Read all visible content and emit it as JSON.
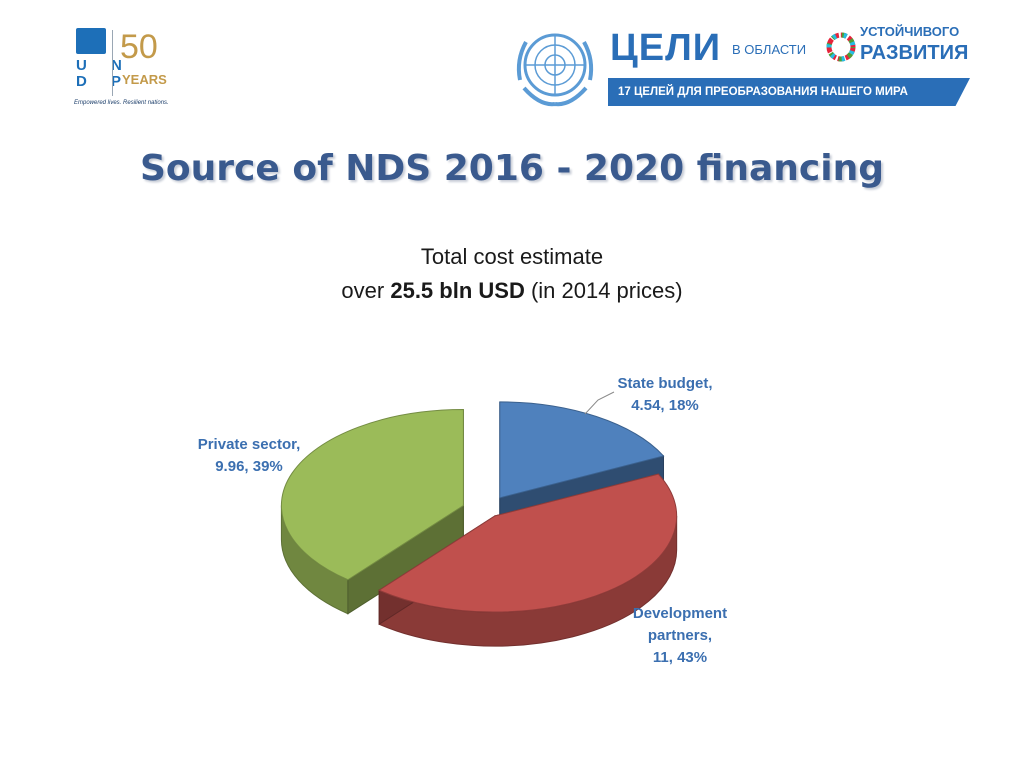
{
  "header": {
    "undp": {
      "letters": [
        "U N",
        "D P"
      ],
      "fifty": "50",
      "years": "YEARS",
      "tagline": "Empowered lives. Resilient nations."
    },
    "sdg": {
      "goals": "ЦЕЛИ",
      "in_area": "В ОБЛАСТИ",
      "sustainable": "УСТОЙЧИВОГО",
      "development": "РАЗВИТИЯ",
      "bar_text": "17 ЦЕЛЕЙ ДЛЯ ПРЕОБРАЗОВАНИЯ НАШЕГО МИРА"
    }
  },
  "slide": {
    "title": "Source of NDS 2016 - 2020 financing",
    "subtitle_line1": "Total cost estimate",
    "subtitle_prefix": "over ",
    "subtitle_bold": "25.5 bln USD",
    "subtitle_suffix": " (in 2014 prices)"
  },
  "chart_data": {
    "type": "pie",
    "slices": [
      {
        "label": "State budget",
        "value": 4.54,
        "percent": 18,
        "color": "#4f81bd",
        "label_lines": [
          "State budget,",
          "4.54, 18%"
        ]
      },
      {
        "label": "Development partners",
        "value": 11,
        "percent": 43,
        "color": "#c0504d",
        "label_lines": [
          "Development",
          "partners,",
          "11, 43%"
        ]
      },
      {
        "label": "Private sector",
        "value": 9.96,
        "percent": 39,
        "color": "#9bbb59",
        "label_lines": [
          "Private sector,",
          "9.96, 39%"
        ]
      }
    ],
    "style": "3d-exploded",
    "legend": "none"
  }
}
